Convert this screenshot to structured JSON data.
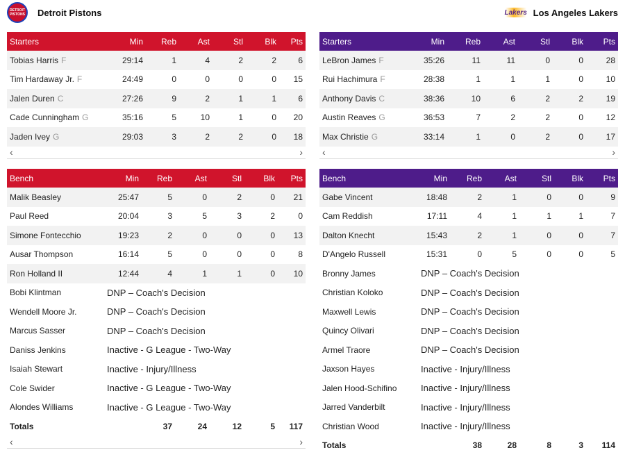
{
  "home": {
    "name": "Detroit Pistons",
    "logo_text": "DETROIT PISTONS",
    "color": "#d0142c",
    "starters": {
      "header": [
        "Starters",
        "Min",
        "Reb",
        "Ast",
        "Stl",
        "Blk",
        "Pts"
      ],
      "rows": [
        {
          "name": "Tobias Harris",
          "pos": "F",
          "min": "29:14",
          "reb": "1",
          "ast": "4",
          "stl": "2",
          "blk": "2",
          "pts": "6"
        },
        {
          "name": "Tim Hardaway Jr.",
          "pos": "F",
          "min": "24:49",
          "reb": "0",
          "ast": "0",
          "stl": "0",
          "blk": "0",
          "pts": "15"
        },
        {
          "name": "Jalen Duren",
          "pos": "C",
          "min": "27:26",
          "reb": "9",
          "ast": "2",
          "stl": "1",
          "blk": "1",
          "pts": "6"
        },
        {
          "name": "Cade Cunningham",
          "pos": "G",
          "min": "35:16",
          "reb": "5",
          "ast": "10",
          "stl": "1",
          "blk": "0",
          "pts": "20"
        },
        {
          "name": "Jaden Ivey",
          "pos": "G",
          "min": "29:03",
          "reb": "3",
          "ast": "2",
          "stl": "2",
          "blk": "0",
          "pts": "18"
        }
      ]
    },
    "bench": {
      "header": [
        "Bench",
        "Min",
        "Reb",
        "Ast",
        "Stl",
        "Blk",
        "Pts"
      ],
      "rows": [
        {
          "name": "Malik Beasley",
          "min": "25:47",
          "reb": "5",
          "ast": "0",
          "stl": "2",
          "blk": "0",
          "pts": "21"
        },
        {
          "name": "Paul Reed",
          "min": "20:04",
          "reb": "3",
          "ast": "5",
          "stl": "3",
          "blk": "2",
          "pts": "0"
        },
        {
          "name": "Simone Fontecchio",
          "min": "19:23",
          "reb": "2",
          "ast": "0",
          "stl": "0",
          "blk": "0",
          "pts": "13"
        },
        {
          "name": "Ausar Thompson",
          "min": "16:14",
          "reb": "5",
          "ast": "0",
          "stl": "0",
          "blk": "0",
          "pts": "8"
        },
        {
          "name": "Ron Holland II",
          "min": "12:44",
          "reb": "4",
          "ast": "1",
          "stl": "1",
          "blk": "0",
          "pts": "10"
        }
      ],
      "notes": [
        {
          "name": "Bobi Klintman",
          "note": "DNP – Coach's Decision"
        },
        {
          "name": "Wendell Moore Jr.",
          "note": "DNP – Coach's Decision"
        },
        {
          "name": "Marcus Sasser",
          "note": "DNP – Coach's Decision"
        },
        {
          "name": "Daniss Jenkins",
          "note": "Inactive - G League - Two-Way"
        },
        {
          "name": "Isaiah Stewart",
          "note": "Inactive - Injury/Illness"
        },
        {
          "name": "Cole Swider",
          "note": "Inactive - G League - Two-Way"
        },
        {
          "name": "Alondes Williams",
          "note": "Inactive - G League - Two-Way"
        }
      ],
      "totals": {
        "label": "Totals",
        "reb": "37",
        "ast": "24",
        "stl": "12",
        "blk": "5",
        "pts": "117"
      }
    }
  },
  "away": {
    "name": "Los Angeles Lakers",
    "logo_text": "Lakers",
    "color": "#4e1c8a",
    "starters": {
      "header": [
        "Starters",
        "Min",
        "Reb",
        "Ast",
        "Stl",
        "Blk",
        "Pts"
      ],
      "rows": [
        {
          "name": "LeBron James",
          "pos": "F",
          "min": "35:26",
          "reb": "11",
          "ast": "11",
          "stl": "0",
          "blk": "0",
          "pts": "28"
        },
        {
          "name": "Rui Hachimura",
          "pos": "F",
          "min": "28:38",
          "reb": "1",
          "ast": "1",
          "stl": "1",
          "blk": "0",
          "pts": "10"
        },
        {
          "name": "Anthony Davis",
          "pos": "C",
          "min": "38:36",
          "reb": "10",
          "ast": "6",
          "stl": "2",
          "blk": "2",
          "pts": "19"
        },
        {
          "name": "Austin Reaves",
          "pos": "G",
          "min": "36:53",
          "reb": "7",
          "ast": "2",
          "stl": "2",
          "blk": "0",
          "pts": "12"
        },
        {
          "name": "Max Christie",
          "pos": "G",
          "min": "33:14",
          "reb": "1",
          "ast": "0",
          "stl": "2",
          "blk": "0",
          "pts": "17"
        }
      ]
    },
    "bench": {
      "header": [
        "Bench",
        "Min",
        "Reb",
        "Ast",
        "Stl",
        "Blk",
        "Pts"
      ],
      "rows": [
        {
          "name": "Gabe Vincent",
          "min": "18:48",
          "reb": "2",
          "ast": "1",
          "stl": "0",
          "blk": "0",
          "pts": "9"
        },
        {
          "name": "Cam Reddish",
          "min": "17:11",
          "reb": "4",
          "ast": "1",
          "stl": "1",
          "blk": "1",
          "pts": "7"
        },
        {
          "name": "Dalton Knecht",
          "min": "15:43",
          "reb": "2",
          "ast": "1",
          "stl": "0",
          "blk": "0",
          "pts": "7"
        },
        {
          "name": "D'Angelo Russell",
          "min": "15:31",
          "reb": "0",
          "ast": "5",
          "stl": "0",
          "blk": "0",
          "pts": "5"
        }
      ],
      "notes": [
        {
          "name": "Bronny James",
          "note": "DNP – Coach's Decision"
        },
        {
          "name": "Christian Koloko",
          "note": "DNP – Coach's Decision"
        },
        {
          "name": "Maxwell Lewis",
          "note": "DNP – Coach's Decision"
        },
        {
          "name": "Quincy Olivari",
          "note": "DNP – Coach's Decision"
        },
        {
          "name": "Armel Traore",
          "note": "DNP – Coach's Decision"
        },
        {
          "name": "Jaxson Hayes",
          "note": "Inactive - Injury/Illness"
        },
        {
          "name": "Jalen Hood-Schifino",
          "note": "Inactive - Injury/Illness"
        },
        {
          "name": "Jarred Vanderbilt",
          "note": "Inactive - Injury/Illness"
        },
        {
          "name": "Christian Wood",
          "note": "Inactive - Injury/Illness"
        }
      ],
      "totals": {
        "label": "Totals",
        "reb": "38",
        "ast": "28",
        "stl": "8",
        "blk": "3",
        "pts": "114"
      }
    }
  },
  "scroll": {
    "left": "‹",
    "right": "›"
  }
}
